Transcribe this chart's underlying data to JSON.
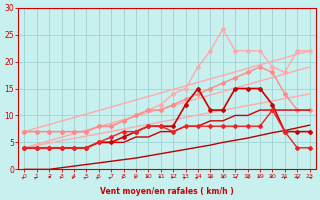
{
  "title": "",
  "xlabel": "Vent moyen/en rafales ( km/h )",
  "ylabel": "",
  "bg_color": "#c8f0ee",
  "grid_color": "#99cccc",
  "xlim": [
    -0.5,
    23.5
  ],
  "ylim": [
    0,
    30
  ],
  "xticks": [
    0,
    1,
    2,
    3,
    4,
    5,
    6,
    7,
    8,
    9,
    10,
    11,
    12,
    13,
    14,
    15,
    16,
    17,
    18,
    19,
    20,
    21,
    22,
    23
  ],
  "yticks": [
    0,
    5,
    10,
    15,
    20,
    25,
    30
  ],
  "series": [
    {
      "x": [
        0,
        23
      ],
      "y": [
        7,
        22
      ],
      "color": "#ffaaaa",
      "lw": 1.0,
      "marker": null,
      "zorder": 2
    },
    {
      "x": [
        0,
        23
      ],
      "y": [
        4,
        19
      ],
      "color": "#ffaaaa",
      "lw": 1.0,
      "marker": null,
      "zorder": 2
    },
    {
      "x": [
        0,
        23
      ],
      "y": [
        4,
        14
      ],
      "color": "#ffaaaa",
      "lw": 1.0,
      "marker": null,
      "zorder": 2
    },
    {
      "x": [
        0,
        1,
        2,
        3,
        4,
        5,
        6,
        7,
        8,
        9,
        10,
        11,
        12,
        13,
        14,
        15,
        16,
        17,
        18,
        19,
        20,
        21,
        22,
        23
      ],
      "y": [
        7,
        7,
        7,
        7,
        7,
        7,
        8,
        8,
        9,
        10,
        11,
        12,
        14,
        15,
        19,
        22,
        26,
        22,
        22,
        22,
        19,
        18,
        22,
        22
      ],
      "color": "#ffaaaa",
      "lw": 1.0,
      "marker": "D",
      "ms": 2.0,
      "zorder": 3
    },
    {
      "x": [
        0,
        1,
        2,
        3,
        4,
        5,
        6,
        7,
        8,
        9,
        10,
        11,
        12,
        13,
        14,
        15,
        16,
        17,
        18,
        19,
        20,
        21,
        22,
        23
      ],
      "y": [
        7,
        7,
        7,
        7,
        7,
        7,
        8,
        8,
        9,
        10,
        11,
        11,
        12,
        13,
        14,
        15,
        16,
        17,
        18,
        19,
        18,
        14,
        11,
        11
      ],
      "color": "#ff8888",
      "lw": 1.0,
      "marker": "D",
      "ms": 2.0,
      "zorder": 3
    },
    {
      "x": [
        0,
        1,
        2,
        3,
        4,
        5,
        6,
        7,
        8,
        9,
        10,
        11,
        12,
        13,
        14,
        15,
        16,
        17,
        18,
        19,
        20,
        21,
        22,
        23
      ],
      "y": [
        4,
        4,
        4,
        4,
        4,
        4,
        5,
        5,
        6,
        7,
        8,
        8,
        8,
        12,
        15,
        11,
        11,
        15,
        15,
        15,
        12,
        7,
        7,
        7
      ],
      "color": "#cc0000",
      "lw": 1.2,
      "marker": "D",
      "ms": 2.0,
      "zorder": 5
    },
    {
      "x": [
        0,
        1,
        2,
        3,
        4,
        5,
        6,
        7,
        8,
        9,
        10,
        11,
        12,
        13,
        14,
        15,
        16,
        17,
        18,
        19,
        20,
        21,
        22,
        23
      ],
      "y": [
        4,
        4,
        4,
        4,
        4,
        4,
        5,
        5,
        5,
        6,
        6,
        7,
        7,
        8,
        8,
        9,
        9,
        10,
        10,
        11,
        11,
        11,
        11,
        11
      ],
      "color": "#cc0000",
      "lw": 1.0,
      "marker": null,
      "zorder": 4
    },
    {
      "x": [
        0,
        1,
        2,
        3,
        4,
        5,
        6,
        7,
        8,
        9,
        10,
        11,
        12,
        13,
        14,
        15,
        16,
        17,
        18,
        19,
        20,
        21,
        22,
        23
      ],
      "y": [
        4,
        4,
        4,
        4,
        4,
        4,
        5,
        6,
        7,
        7,
        8,
        8,
        7,
        8,
        8,
        8,
        8,
        8,
        8,
        8,
        11,
        7,
        4,
        4
      ],
      "color": "#ee2222",
      "lw": 1.0,
      "marker": "D",
      "ms": 2.0,
      "zorder": 5
    },
    {
      "x": [
        0,
        1,
        2,
        3,
        4,
        5,
        6,
        7,
        8,
        9,
        10,
        11,
        12,
        13,
        14,
        15,
        16,
        17,
        18,
        19,
        20,
        21,
        22,
        23
      ],
      "y": [
        0,
        0,
        0,
        0.3,
        0.6,
        0.9,
        1.2,
        1.5,
        1.8,
        2.1,
        2.5,
        2.9,
        3.3,
        3.7,
        4.1,
        4.5,
        5.0,
        5.4,
        5.8,
        6.3,
        6.8,
        7.2,
        7.7,
        8.2
      ],
      "color": "#bb0000",
      "lw": 1.0,
      "marker": null,
      "zorder": 2
    }
  ],
  "arrows": {
    "x": [
      0,
      1,
      2,
      3,
      4,
      5,
      6,
      7,
      8,
      9,
      10,
      11,
      12,
      13,
      14,
      15,
      16,
      17,
      18,
      19,
      20,
      21,
      22,
      23
    ],
    "angles": [
      225,
      225,
      210,
      270,
      240,
      225,
      225,
      225,
      270,
      270,
      315,
      300,
      270,
      225,
      225,
      195,
      195,
      90,
      90,
      315,
      315,
      0,
      0,
      120
    ]
  }
}
